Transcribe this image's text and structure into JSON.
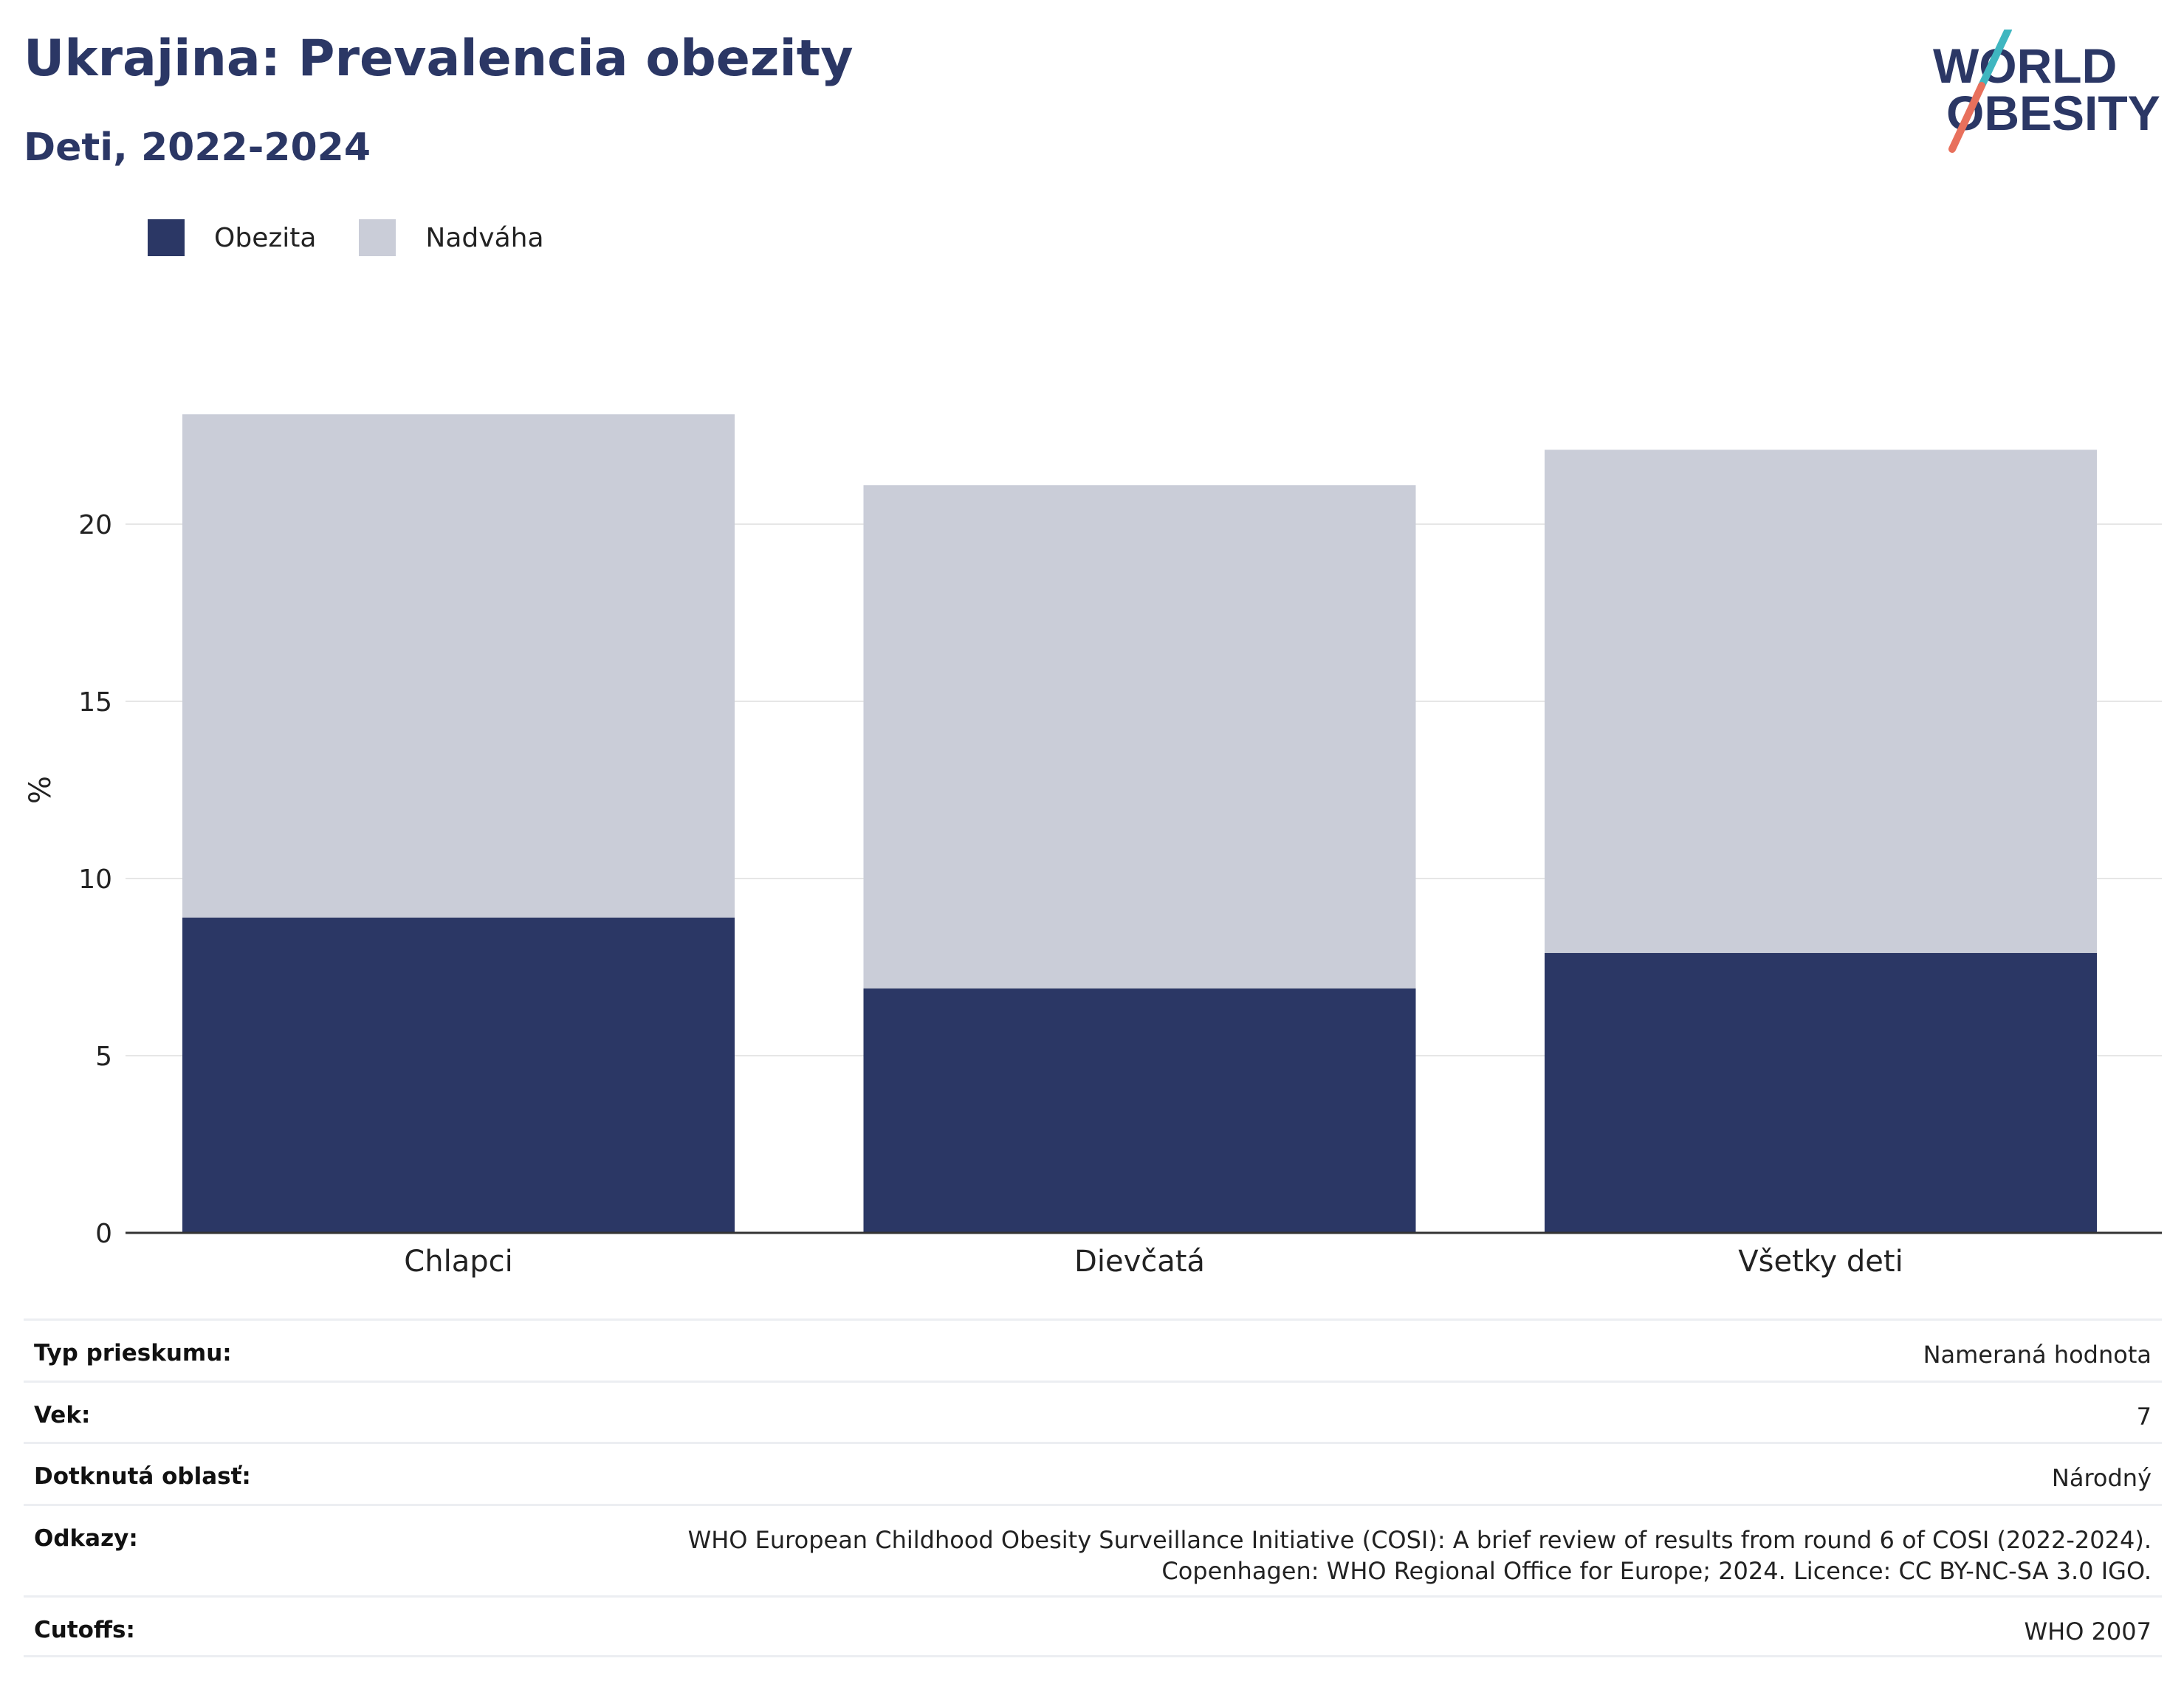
{
  "header": {
    "title": "Ukrajina: Prevalencia obezity",
    "subtitle": "Deti, 2022-2024",
    "logo_line1": "WORLD",
    "logo_line2": "OBESITY"
  },
  "legend": [
    {
      "label": "Obezita",
      "color": "#2b3765"
    },
    {
      "label": "Nadváha",
      "color": "#cacdd8"
    }
  ],
  "chart_data": {
    "type": "bar",
    "stacked": true,
    "categories": [
      "Chlapci",
      "Dievčatá",
      "Všetky deti"
    ],
    "series": [
      {
        "name": "Obezita",
        "values": [
          8.9,
          6.9,
          7.9
        ],
        "color": "#2b3765"
      },
      {
        "name": "Nadváha",
        "values": [
          14.2,
          14.2,
          14.2
        ],
        "color": "#cacdd8"
      }
    ],
    "ylabel": "%",
    "ylim": [
      0,
      25
    ],
    "yticks": [
      0,
      5,
      10,
      15,
      20
    ],
    "grid": true,
    "legend_position": "top-left"
  },
  "info": [
    {
      "label": "Typ prieskumu:",
      "value": [
        "Nameraná hodnota"
      ]
    },
    {
      "label": "Vek:",
      "value": [
        "7"
      ]
    },
    {
      "label": "Dotknutá oblasť:",
      "value": [
        "Národný"
      ]
    },
    {
      "label": "Odkazy:",
      "value": [
        "WHO European Childhood Obesity Surveillance Initiative (COSI): A brief review of results from round 6 of COSI (2022-2024).",
        "Copenhagen: WHO Regional Office for Europe; 2024. Licence: CC BY-NC-SA 3.0 IGO."
      ]
    },
    {
      "label": "Cutoffs:",
      "value": [
        "WHO 2007"
      ]
    }
  ]
}
